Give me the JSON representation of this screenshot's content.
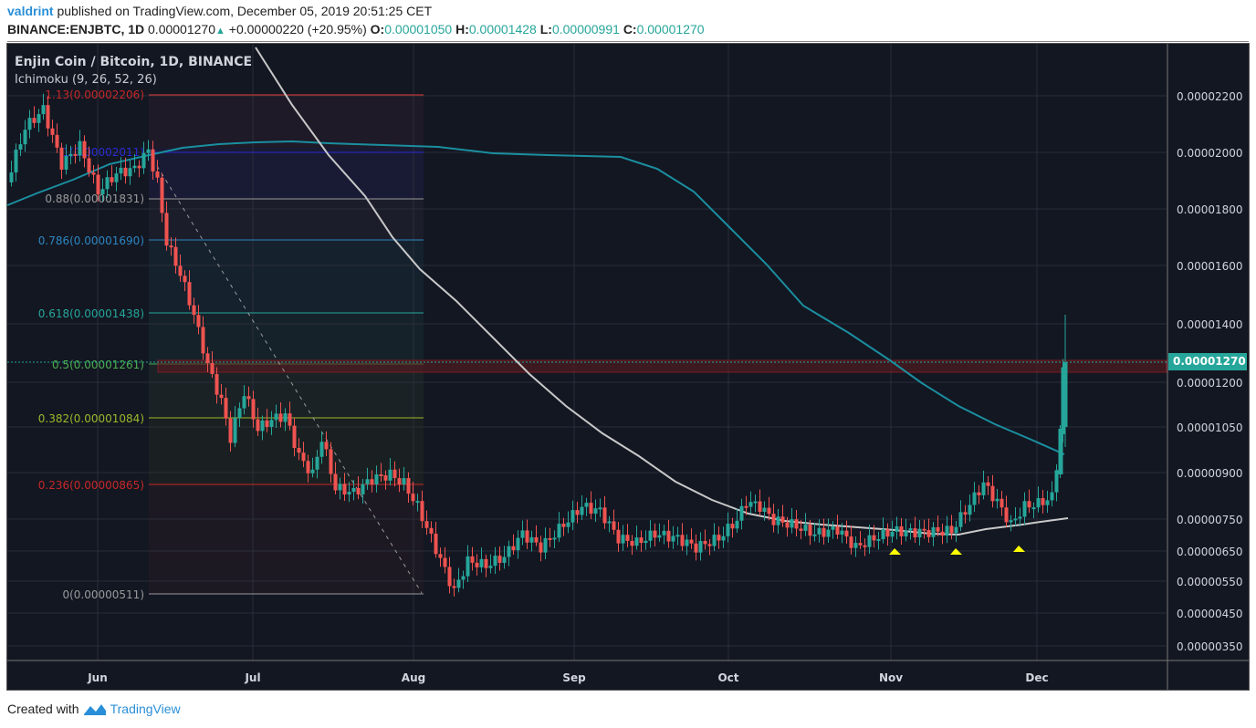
{
  "header": {
    "publisher": "valdrint",
    "published_text": "published on TradingView.com, December 05, 2019 20:51:25 CET",
    "symbol": "BINANCE:ENJBTC, 1D",
    "last": "0.00001270",
    "change": "+0.00000220 (+20.95%)",
    "o_label": "O:",
    "o": "0.00001050",
    "h_label": "H:",
    "h": "0.00001428",
    "l_label": "L:",
    "l": "0.00000991",
    "c_label": "C:",
    "c": "0.00001270"
  },
  "legend": {
    "title": "Enjin Coin / Bitcoin, 1D, BINANCE",
    "indicator": "Ichimoku (9, 26, 52, 26)"
  },
  "price_tag": "0.00001270",
  "footer": {
    "created_with": "Created with",
    "brand": "TradingView"
  },
  "colors": {
    "up": "#26a69a",
    "down": "#ef5350",
    "background": "#131722",
    "grid": "#2a2e39",
    "ma_teal": "#1a8fa0",
    "ma_white": "#c8c8c8",
    "marker": "#ffff00"
  },
  "chart_data": {
    "type": "candlestick",
    "title": "Enjin Coin / Bitcoin, 1D, BINANCE",
    "subtitle": "Ichimoku (9, 26, 52, 26)",
    "xlabel": "",
    "ylabel": "",
    "x_ticks": [
      "Jun",
      "Jul",
      "Aug",
      "Sep",
      "Oct",
      "Nov",
      "Dec"
    ],
    "y_ticks": [
      "0.00002200",
      "0.00002000",
      "0.00001800",
      "0.00001600",
      "0.00001400",
      "0.00001200",
      "0.00001050",
      "0.00000900",
      "0.00000750",
      "0.00000650",
      "0.00000550",
      "0.00000450",
      "0.00000350"
    ],
    "ylim": [
      3.1e-06,
      2.35e-05
    ],
    "scale": "log",
    "last_price": 1.27e-05,
    "fibonacci": [
      {
        "level": "1.13",
        "price": "0.00002206",
        "color": "#e53935"
      },
      {
        "level": "1",
        "price": "0.00002011",
        "color": "#2a2ad0"
      },
      {
        "level": "0.88",
        "price": "0.00001831",
        "color": "#9a9a9a"
      },
      {
        "level": "0.786",
        "price": "0.00001690",
        "color": "#2e86c1"
      },
      {
        "level": "0.618",
        "price": "0.00001438",
        "color": "#26a69a"
      },
      {
        "level": "0.5",
        "price": "0.00001261",
        "color": "#4caf50"
      },
      {
        "level": "0.382",
        "price": "0.00001084",
        "color": "#9cb82a"
      },
      {
        "level": "0.236",
        "price": "0.00000865",
        "color": "#c62828"
      },
      {
        "level": "0",
        "price": "0.00000511",
        "color": "#9a9a9a"
      }
    ],
    "resistance_zone": [
      1.22e-05,
      1.27e-05
    ],
    "support_markers": [
      "Nov 01",
      "Nov 15",
      "Nov 28"
    ],
    "series": [
      {
        "name": "MA (teal, long)",
        "values_approx": [
          1.9e-05,
          2e-05,
          2.04e-05,
          2.03e-05,
          2.01e-05,
          1.99e-05,
          1.8e-05,
          1.4e-05,
          1.27e-05,
          1.1e-05,
          9.5e-06
        ]
      },
      {
        "name": "MA (white, short)",
        "values_approx": [
          2.4e-05,
          2e-05,
          1.6e-05,
          1.15e-05,
          8.5e-06,
          7.2e-06,
          7e-06,
          7.3e-06
        ]
      }
    ]
  }
}
